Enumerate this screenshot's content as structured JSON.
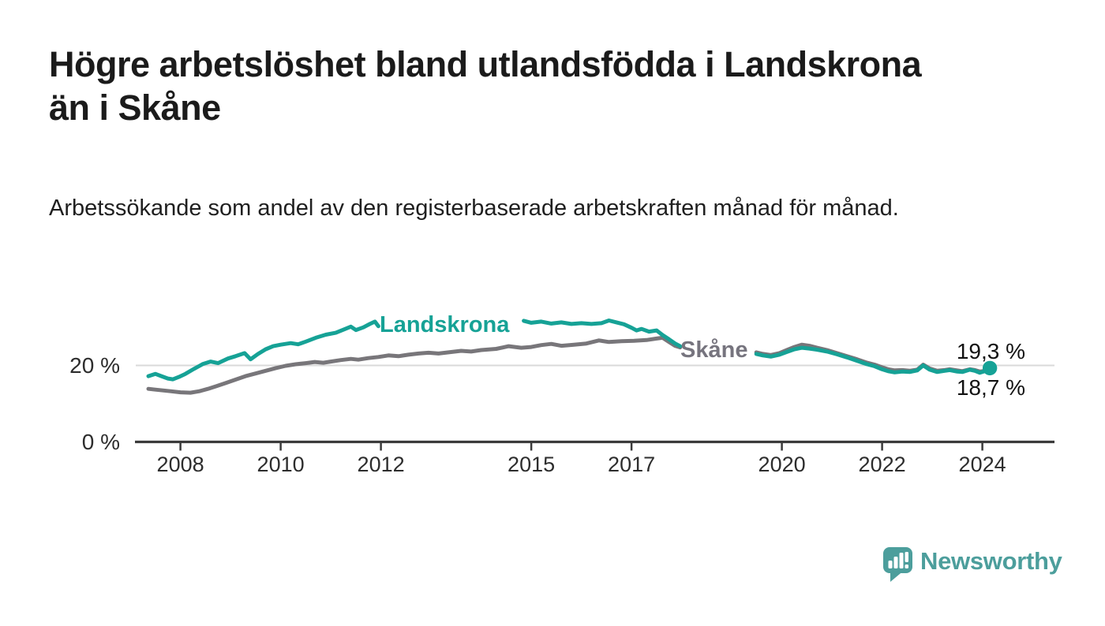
{
  "header": {
    "title_lines": [
      "Högre arbetslöshet bland utlandsfödda i Landskrona",
      "än i Skåne"
    ],
    "subtitle": "Arbetssökande som andel av den registerbaserade arbetskraften månad för månad."
  },
  "colors": {
    "landskrona": "#16a296",
    "skane": "#78767a",
    "grid": "#d9d9d9",
    "axis": "#3b3b3b",
    "tick_text": "#2d2d2d",
    "text": "#1b1b1b",
    "logo": "#4c9e9c"
  },
  "chart_data": {
    "type": "line",
    "title": "Högre arbetslöshet bland utlandsfödda i Landskrona än i Skåne",
    "subtitle": "Arbetssökande som andel av den registerbaserade arbetskraften månad för månad.",
    "unit": "%",
    "x_ticks": [
      2008,
      2010,
      2012,
      2015,
      2017,
      2020,
      2022,
      2024
    ],
    "y_ticks": [
      {
        "value": 0,
        "label": "0 %"
      },
      {
        "value": 20,
        "label": "20 %"
      }
    ],
    "ylim": [
      0,
      36
    ],
    "x_range_years": [
      2007.36,
      2024.15
    ],
    "grid": "single horizontal gridline at 20 %, inline series labels instead of legend",
    "series": [
      {
        "name": "Landskrona",
        "color": "#16a296",
        "end_label": "19,3 %",
        "end_value": 19.3,
        "end_dot": true,
        "segments": [
          [
            [
              2007.36,
              17.2
            ],
            [
              2007.5,
              17.8
            ],
            [
              2007.62,
              17.2
            ],
            [
              2007.75,
              16.6
            ],
            [
              2007.85,
              16.4
            ],
            [
              2007.97,
              17.0
            ],
            [
              2008.1,
              17.8
            ],
            [
              2008.27,
              19.1
            ],
            [
              2008.45,
              20.4
            ],
            [
              2008.6,
              21.0
            ],
            [
              2008.75,
              20.6
            ],
            [
              2008.95,
              21.8
            ],
            [
              2009.1,
              22.4
            ],
            [
              2009.28,
              23.2
            ],
            [
              2009.4,
              21.6
            ],
            [
              2009.55,
              23.0
            ],
            [
              2009.7,
              24.2
            ],
            [
              2009.85,
              25.0
            ],
            [
              2010.0,
              25.4
            ],
            [
              2010.2,
              25.8
            ],
            [
              2010.35,
              25.5
            ],
            [
              2010.5,
              26.2
            ],
            [
              2010.7,
              27.2
            ],
            [
              2010.9,
              28.0
            ],
            [
              2011.1,
              28.5
            ],
            [
              2011.25,
              29.3
            ],
            [
              2011.4,
              30.1
            ],
            [
              2011.5,
              29.2
            ],
            [
              2011.65,
              29.9
            ],
            [
              2011.78,
              30.8
            ],
            [
              2011.88,
              31.4
            ],
            [
              2011.95,
              30.2
            ]
          ],
          [
            [
              2014.85,
              31.6
            ],
            [
              2015.0,
              31.1
            ],
            [
              2015.2,
              31.4
            ],
            [
              2015.4,
              30.9
            ],
            [
              2015.6,
              31.2
            ],
            [
              2015.8,
              30.8
            ],
            [
              2016.0,
              31.0
            ],
            [
              2016.2,
              30.8
            ],
            [
              2016.4,
              31.0
            ],
            [
              2016.55,
              31.7
            ],
            [
              2016.7,
              31.2
            ],
            [
              2016.85,
              30.7
            ],
            [
              2017.0,
              29.8
            ],
            [
              2017.1,
              29.1
            ],
            [
              2017.2,
              29.5
            ],
            [
              2017.35,
              28.8
            ],
            [
              2017.5,
              29.1
            ],
            [
              2017.62,
              27.9
            ],
            [
              2017.75,
              26.8
            ],
            [
              2017.87,
              25.7
            ],
            [
              2017.97,
              25.0
            ]
          ],
          [
            [
              2019.49,
              23.0
            ],
            [
              2019.62,
              22.6
            ],
            [
              2019.78,
              22.3
            ],
            [
              2019.95,
              22.8
            ],
            [
              2020.1,
              23.5
            ],
            [
              2020.25,
              24.2
            ],
            [
              2020.4,
              24.6
            ],
            [
              2020.55,
              24.4
            ],
            [
              2020.7,
              24.1
            ],
            [
              2020.9,
              23.6
            ],
            [
              2021.1,
              22.9
            ],
            [
              2021.3,
              22.1
            ],
            [
              2021.5,
              21.2
            ],
            [
              2021.7,
              20.3
            ],
            [
              2021.85,
              19.8
            ],
            [
              2022.0,
              19.0
            ],
            [
              2022.12,
              18.5
            ],
            [
              2022.25,
              18.2
            ],
            [
              2022.4,
              18.4
            ],
            [
              2022.55,
              18.3
            ],
            [
              2022.7,
              18.7
            ],
            [
              2022.82,
              20.0
            ],
            [
              2022.95,
              18.9
            ],
            [
              2023.1,
              18.3
            ],
            [
              2023.25,
              18.6
            ],
            [
              2023.35,
              18.8
            ],
            [
              2023.5,
              18.4
            ],
            [
              2023.6,
              18.3
            ],
            [
              2023.75,
              18.9
            ],
            [
              2023.85,
              18.6
            ],
            [
              2023.95,
              18.1
            ],
            [
              2024.05,
              18.5
            ],
            [
              2024.15,
              19.3
            ]
          ]
        ]
      },
      {
        "name": "Skåne",
        "color": "#78767a",
        "end_label": "18,7 %",
        "end_value": 18.7,
        "end_dot": false,
        "segments": [
          [
            [
              2007.36,
              13.9
            ],
            [
              2007.5,
              13.7
            ],
            [
              2007.65,
              13.5
            ],
            [
              2007.8,
              13.3
            ],
            [
              2008.0,
              13.0
            ],
            [
              2008.2,
              12.9
            ],
            [
              2008.38,
              13.3
            ],
            [
              2008.55,
              13.9
            ],
            [
              2008.72,
              14.6
            ],
            [
              2008.9,
              15.4
            ],
            [
              2009.1,
              16.3
            ],
            [
              2009.3,
              17.2
            ],
            [
              2009.5,
              17.9
            ],
            [
              2009.7,
              18.6
            ],
            [
              2009.9,
              19.3
            ],
            [
              2010.1,
              19.9
            ],
            [
              2010.3,
              20.3
            ],
            [
              2010.5,
              20.6
            ],
            [
              2010.68,
              20.9
            ],
            [
              2010.85,
              20.7
            ],
            [
              2011.0,
              21.0
            ],
            [
              2011.2,
              21.4
            ],
            [
              2011.4,
              21.7
            ],
            [
              2011.55,
              21.5
            ],
            [
              2011.75,
              21.9
            ],
            [
              2011.95,
              22.2
            ],
            [
              2012.15,
              22.6
            ],
            [
              2012.35,
              22.4
            ],
            [
              2012.55,
              22.8
            ],
            [
              2012.75,
              23.1
            ],
            [
              2012.95,
              23.3
            ],
            [
              2013.15,
              23.1
            ],
            [
              2013.35,
              23.4
            ],
            [
              2013.6,
              23.8
            ],
            [
              2013.8,
              23.6
            ],
            [
              2014.0,
              24.0
            ],
            [
              2014.3,
              24.3
            ],
            [
              2014.55,
              25.0
            ],
            [
              2014.8,
              24.6
            ],
            [
              2015.0,
              24.8
            ],
            [
              2015.2,
              25.3
            ],
            [
              2015.4,
              25.6
            ],
            [
              2015.6,
              25.1
            ],
            [
              2015.85,
              25.4
            ],
            [
              2016.1,
              25.7
            ],
            [
              2016.35,
              26.5
            ],
            [
              2016.55,
              26.1
            ],
            [
              2016.8,
              26.3
            ],
            [
              2017.05,
              26.4
            ],
            [
              2017.3,
              26.6
            ],
            [
              2017.5,
              27.0
            ],
            [
              2017.62,
              27.2
            ],
            [
              2017.75,
              26.1
            ],
            [
              2017.87,
              25.1
            ],
            [
              2017.97,
              24.7
            ]
          ],
          [
            [
              2019.49,
              23.4
            ],
            [
              2019.62,
              23.0
            ],
            [
              2019.78,
              22.7
            ],
            [
              2019.95,
              23.2
            ],
            [
              2020.1,
              24.0
            ],
            [
              2020.25,
              24.8
            ],
            [
              2020.4,
              25.4
            ],
            [
              2020.55,
              25.1
            ],
            [
              2020.7,
              24.6
            ],
            [
              2020.9,
              24.0
            ],
            [
              2021.1,
              23.2
            ],
            [
              2021.3,
              22.4
            ],
            [
              2021.5,
              21.6
            ],
            [
              2021.7,
              20.7
            ],
            [
              2021.85,
              20.2
            ],
            [
              2022.0,
              19.5
            ],
            [
              2022.12,
              19.0
            ],
            [
              2022.25,
              18.7
            ],
            [
              2022.4,
              18.8
            ],
            [
              2022.55,
              18.6
            ],
            [
              2022.7,
              18.9
            ],
            [
              2022.82,
              20.2
            ],
            [
              2022.95,
              19.2
            ],
            [
              2023.1,
              18.6
            ],
            [
              2023.25,
              18.8
            ],
            [
              2023.35,
              19.0
            ],
            [
              2023.5,
              18.7
            ],
            [
              2023.6,
              18.5
            ],
            [
              2023.75,
              19.0
            ],
            [
              2023.85,
              18.8
            ],
            [
              2023.95,
              18.4
            ],
            [
              2024.05,
              18.6
            ],
            [
              2024.15,
              18.7
            ]
          ]
        ]
      }
    ]
  },
  "logo": {
    "text": "Newsworthy"
  }
}
